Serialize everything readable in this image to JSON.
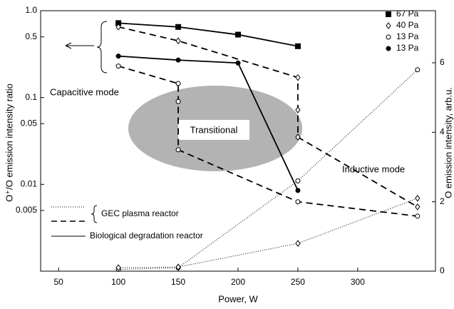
{
  "chart_data": {
    "type": "line",
    "x_label": "Power, W",
    "y_label": "O⁺/O emission intensity ratio",
    "y2_label": "O emission intensity, arb.u.",
    "xlim": [
      35,
      365
    ],
    "xticks": [
      50,
      100,
      150,
      200,
      250,
      300
    ],
    "ylim": [
      0.001,
      1
    ],
    "yscale": "log",
    "yticks": [
      {
        "value": 1,
        "label": "1.0"
      },
      0.5,
      0.1,
      0.05,
      0.01,
      0.005
    ],
    "y2lim": [
      0,
      7.5
    ],
    "y2ticks": [
      0,
      2,
      4,
      6
    ],
    "series": [
      {
        "name": "67 Pa",
        "marker": "square",
        "filled": true,
        "dash": "solid",
        "x": [
          100,
          150,
          200,
          250
        ],
        "values": [
          0.72,
          0.65,
          0.53,
          0.39
        ]
      },
      {
        "name": "40 Pa",
        "marker": "diamond",
        "filled": false,
        "dash": "dashed",
        "x": [
          100,
          150,
          250,
          250,
          250,
          350
        ],
        "values": [
          0.65,
          0.45,
          0.17,
          0.072,
          0.035,
          0.0055
        ]
      },
      {
        "name": "13 Pa",
        "marker": "circle",
        "filled": false,
        "dash": "dashed",
        "x": [
          100,
          150,
          150,
          150,
          250,
          350
        ],
        "values": [
          0.23,
          0.145,
          0.09,
          0.025,
          0.0063,
          0.0043
        ]
      },
      {
        "name": "13 Pa",
        "marker": "circle",
        "filled": true,
        "dash": "solid",
        "x": [
          100,
          150,
          200,
          250
        ],
        "values": [
          0.3,
          0.27,
          0.25,
          0.0085
        ]
      },
      {
        "marker": "circle",
        "filled": false,
        "dash": "dotted",
        "axis": "y2",
        "x": [
          100,
          150,
          250,
          350
        ],
        "values": [
          0.05,
          0.1,
          2.6,
          5.8
        ]
      },
      {
        "marker": "diamond",
        "filled": false,
        "dash": "dotted",
        "axis": "y2",
        "x": [
          100,
          150,
          250,
          350
        ],
        "values": [
          0.1,
          0.12,
          0.8,
          2.1
        ]
      }
    ],
    "annotations": {
      "capacitive": "Capacitive mode",
      "transitional": "Transitional",
      "inductive": "Inductive mode",
      "gec": "GEC plasma reactor",
      "bio": "Biological degradation reactor"
    }
  }
}
